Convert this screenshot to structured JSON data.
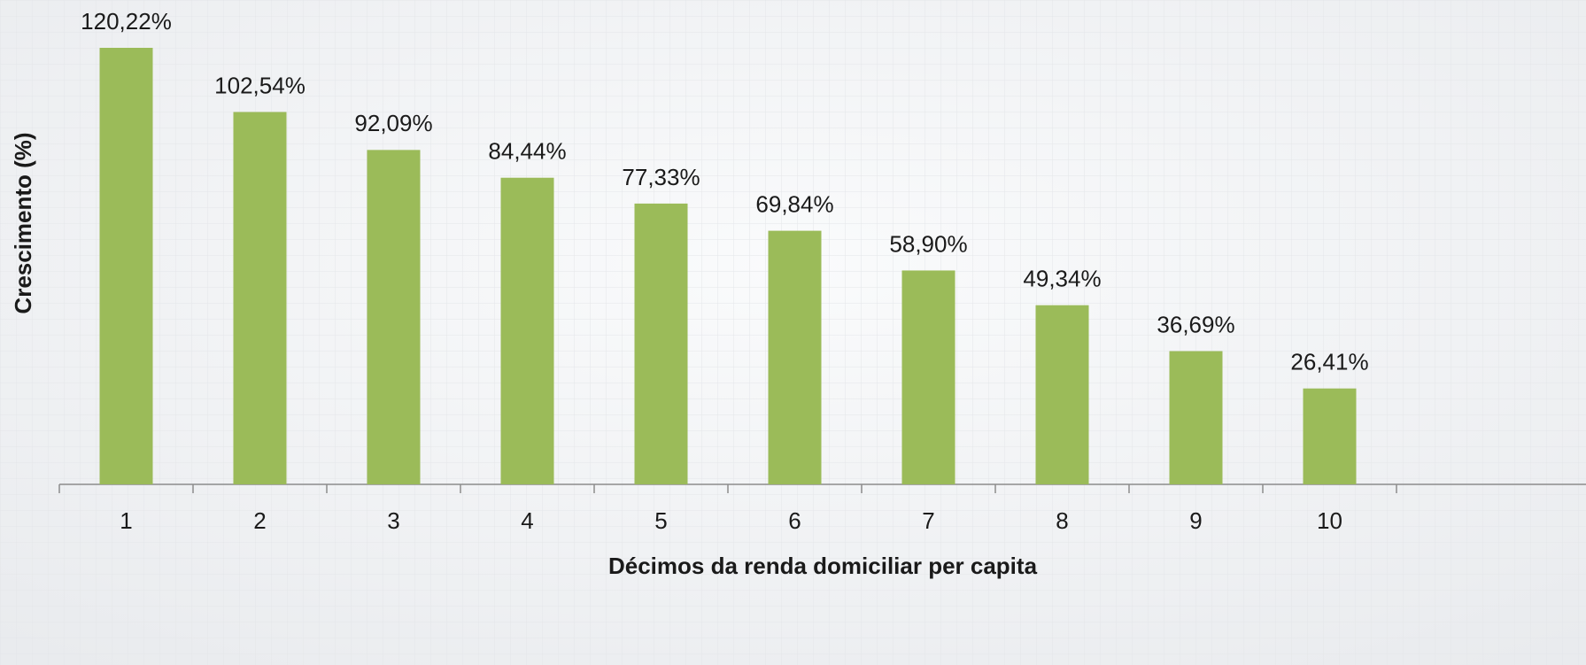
{
  "chart_data": {
    "type": "bar",
    "x_label": "Décimos da renda domiciliar per capita",
    "y_label": "Crescimento (%)",
    "categories": [
      "1",
      "2",
      "3",
      "4",
      "5",
      "6",
      "7",
      "8",
      "9",
      "10"
    ],
    "values": [
      120.22,
      102.54,
      92.09,
      84.44,
      77.33,
      69.84,
      58.9,
      49.34,
      36.69,
      26.41
    ],
    "value_labels": [
      "120,22%",
      "102,54%",
      "92,09%",
      "84,44%",
      "77,33%",
      "69,84%",
      "58,90%",
      "49,34%",
      "36,69%",
      "26,41%"
    ],
    "color": "#9bbb59"
  }
}
